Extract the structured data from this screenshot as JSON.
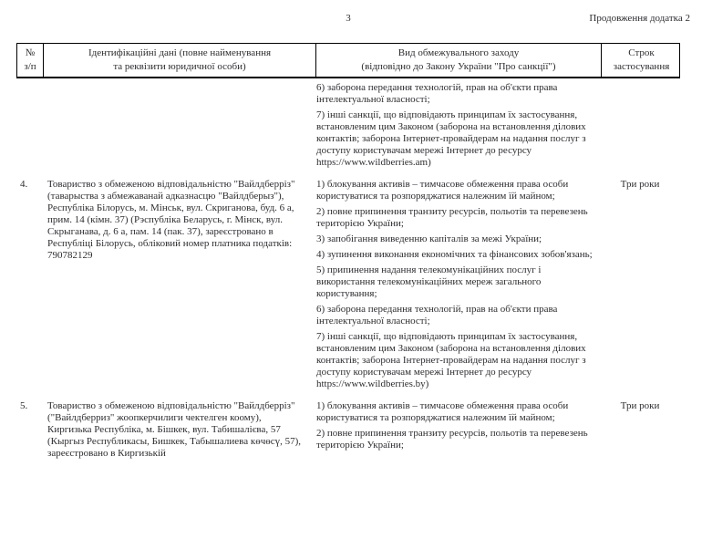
{
  "page": {
    "number": "3",
    "continuation_note": "Продовження додатка 2"
  },
  "table": {
    "header": {
      "num": [
        "№",
        "з/п"
      ],
      "identity": [
        "Ідентифікаційні дані (повне найменування",
        "та реквізити юридичної особи)"
      ],
      "measure": [
        "Вид обмежувального заходу",
        "(відповідно до Закону України \"Про санкції\")"
      ],
      "term": [
        "Строк",
        "застосування"
      ]
    },
    "rows": [
      {
        "num": "",
        "identity": "",
        "sanctions": [
          "6) заборона передання технологій, прав на об'єкти права інтелектуальної власності;",
          "7) інші санкції, що відповідають принципам їх застосування, встановленим цим Законом (заборона на встановлення ділових контактів; заборона Інтернет-провайдерам на надання послуг з доступу користувачам мережі Інтернет до ресурсу https://www.wildberries.am)"
        ],
        "term": ""
      },
      {
        "num": "4.",
        "identity": "Товариство з обмеженою відповідальністю \"Вайлдберріз\" (таварыства з абмежаванай адказнасцю \"Вайлдберыз\"), Республіка Білорусь, м. Мінськ, вул. Скриганова, буд. 6 а, прим. 14 (кімн. 37) (Рэспубліка Беларусь, г. Мінск, вул. Скрыганава, д. 6 а, пам. 14 (пак. 37), зареєстровано в Республіці Білорусь, обліковий номер платника податків: 790782129",
        "sanctions": [
          "1) блокування активів – тимчасове обмеження права особи користуватися та розпоряджатися належним їй майном;",
          "2) повне припинення транзиту ресурсів, польотів та перевезень територією України;",
          "3) запобігання виведенню капіталів за межі України;",
          "4) зупинення виконання економічних та фінансових зобов'язань;",
          "5) припинення надання телекомунікаційних послуг і використання телекомунікаційних мереж загального користування;",
          "6) заборона передання технологій, прав на об'єкти права інтелектуальної власності;",
          "7) інші санкції, що відповідають принципам їх застосування, встановленим цим Законом (заборона на встановлення ділових контактів; заборона Інтернет-провайдерам на надання послуг з доступу користувачам мережі Інтернет до ресурсу https://www.wildberries.by)"
        ],
        "term": "Три роки"
      },
      {
        "num": "5.",
        "identity": "Товариство з обмеженою відповідальністю \"Вайлдберріз\" (\"Вайлдберриз\" жоопкерчилиги чектелген коому), Киргизька Республіка, м. Бішкек, вул. Табишалієва, 57 (Кыргыз Республикасы, Бишкек, Табышалиева көчөсү, 57), зареєстровано в Киргизькій",
        "sanctions": [
          "1) блокування активів – тимчасове обмеження права особи користуватися та розпоряджатися належним їй майном;",
          "2) повне припинення транзиту ресурсів, польотів та перевезень територією України;"
        ],
        "term": "Три роки"
      }
    ]
  }
}
